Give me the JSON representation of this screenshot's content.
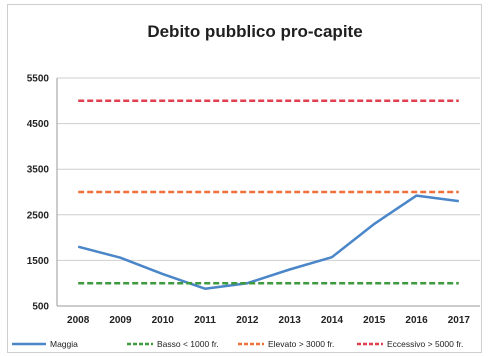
{
  "chart_data": {
    "type": "line",
    "title": "Debito pubblico pro-capite",
    "xlabel": "",
    "ylabel": "",
    "x": [
      "2008",
      "2009",
      "2010",
      "2011",
      "2012",
      "2013",
      "2014",
      "2015",
      "2016",
      "2017"
    ],
    "ylim": [
      500,
      5500
    ],
    "yticks": [
      "500",
      "1500",
      "2500",
      "3500",
      "4500",
      "5500"
    ],
    "grid": "horizontal",
    "legend_position": "bottom",
    "series": [
      {
        "name": "Maggia",
        "color": "#4a86c8",
        "style": "solid",
        "values": [
          1800,
          1560,
          1200,
          880,
          1000,
          1300,
          1570,
          2300,
          2920,
          2800
        ]
      },
      {
        "name": "Basso < 1000 fr.",
        "color": "#3e9a3e",
        "style": "dashed",
        "values": [
          1000,
          1000,
          1000,
          1000,
          1000,
          1000,
          1000,
          1000,
          1000,
          1000
        ]
      },
      {
        "name": "Elevato > 3000 fr.",
        "color": "#f0703c",
        "style": "dashed",
        "values": [
          3000,
          3000,
          3000,
          3000,
          3000,
          3000,
          3000,
          3000,
          3000,
          3000
        ]
      },
      {
        "name": "Eccessivo > 5000 fr.",
        "color": "#e0404e",
        "style": "dashed",
        "values": [
          5000,
          5000,
          5000,
          5000,
          5000,
          5000,
          5000,
          5000,
          5000,
          5000
        ]
      }
    ]
  }
}
